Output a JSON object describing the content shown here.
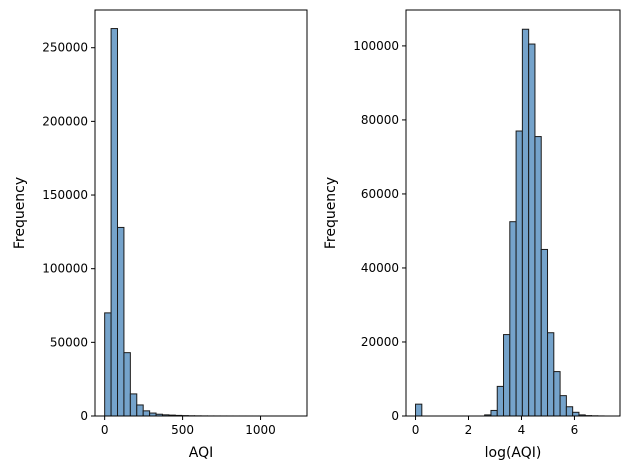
{
  "chart_data": [
    {
      "type": "bar",
      "title": "",
      "xlabel": "AQI",
      "ylabel": "Frequency",
      "bin_start": 0,
      "bin_width": 41.2,
      "values": [
        70000,
        263000,
        128000,
        43000,
        15000,
        7500,
        3500,
        2000,
        1200,
        800,
        600,
        400,
        250,
        150,
        100,
        60,
        40,
        30,
        20,
        15,
        10,
        8,
        6,
        5,
        4,
        3,
        2,
        2,
        1,
        1
      ],
      "xlim": [
        -62,
        1298
      ],
      "ylim": [
        0,
        275600
      ],
      "xticks": [
        0,
        500,
        1000
      ],
      "xtick_labels": [
        "0",
        "500",
        "1000"
      ],
      "yticks": [
        0,
        50000,
        100000,
        150000,
        200000,
        250000
      ],
      "ytick_labels": [
        "0",
        "50000",
        "100000",
        "150000",
        "200000",
        "250000"
      ],
      "color": "#75a3cb",
      "edgecolor": "#1a1a1a"
    },
    {
      "type": "bar",
      "title": "",
      "xlabel": "log(AQI)",
      "ylabel": "Frequency",
      "bin_start": 0,
      "bin_width": 0.2373,
      "values": [
        3200,
        0,
        0,
        0,
        0,
        0,
        0,
        0,
        0,
        0,
        0,
        300,
        1500,
        8000,
        22000,
        52500,
        77000,
        104500,
        100500,
        75500,
        45000,
        22500,
        12000,
        5500,
        2500,
        1000,
        300,
        100,
        50,
        20
      ],
      "xlim": [
        -0.36,
        7.72
      ],
      "ylim": [
        0,
        109700
      ],
      "xticks": [
        0,
        2,
        4,
        6
      ],
      "xtick_labels": [
        "0",
        "2",
        "4",
        "6"
      ],
      "yticks": [
        0,
        20000,
        40000,
        60000,
        80000,
        100000
      ],
      "ytick_labels": [
        "0",
        "20000",
        "40000",
        "60000",
        "80000",
        "100000"
      ],
      "color": "#75a3cb",
      "edgecolor": "#1a1a1a"
    }
  ]
}
